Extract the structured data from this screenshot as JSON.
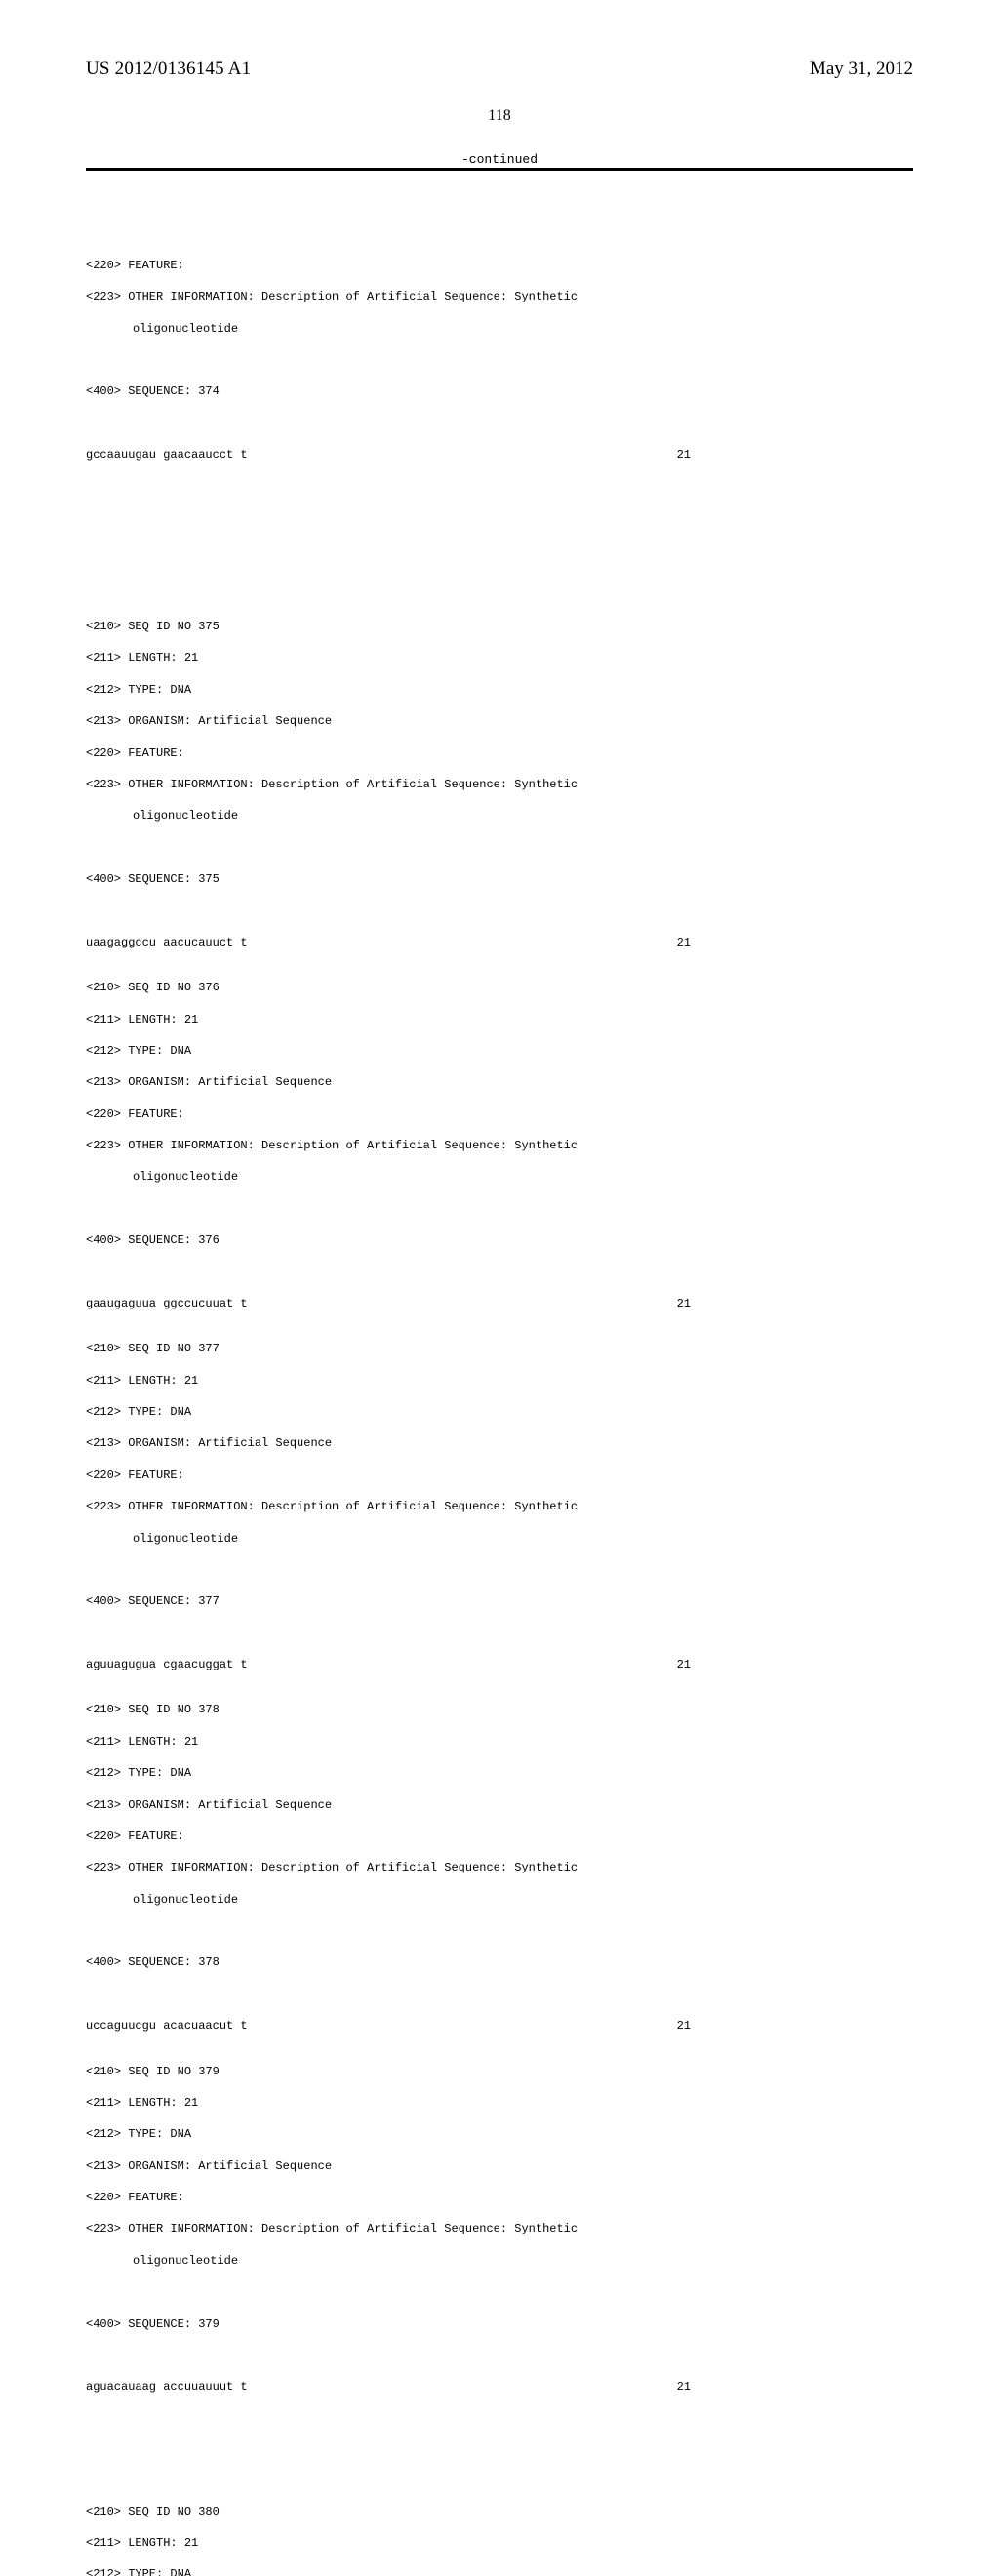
{
  "header": {
    "publication_number": "US 2012/0136145 A1",
    "publication_date": "May 31, 2012"
  },
  "page_number": "118",
  "continued_label": "-continued",
  "first_block": {
    "feature": "<220> FEATURE:",
    "other_info": "<223> OTHER INFORMATION: Description of Artificial Sequence: Synthetic",
    "other_info_cont": "oligonucleotide",
    "seq_header": "<400> SEQUENCE: 374",
    "seq_text": "gccaauugau gaacaaucct t",
    "seq_len": "21"
  },
  "blocks": [
    {
      "seq_id": "<210> SEQ ID NO 375",
      "length": "<211> LENGTH: 21",
      "type": "<212> TYPE: DNA",
      "organism": "<213> ORGANISM: Artificial Sequence",
      "feature": "<220> FEATURE:",
      "other_info": "<223> OTHER INFORMATION: Description of Artificial Sequence: Synthetic",
      "other_info_cont": "oligonucleotide",
      "seq_header": "<400> SEQUENCE: 375",
      "seq_text": "uaagaggccu aacucauuct t",
      "seq_len": "21"
    },
    {
      "seq_id": "<210> SEQ ID NO 376",
      "length": "<211> LENGTH: 21",
      "type": "<212> TYPE: DNA",
      "organism": "<213> ORGANISM: Artificial Sequence",
      "feature": "<220> FEATURE:",
      "other_info": "<223> OTHER INFORMATION: Description of Artificial Sequence: Synthetic",
      "other_info_cont": "oligonucleotide",
      "seq_header": "<400> SEQUENCE: 376",
      "seq_text": "gaaugaguua ggccucuuat t",
      "seq_len": "21"
    },
    {
      "seq_id": "<210> SEQ ID NO 377",
      "length": "<211> LENGTH: 21",
      "type": "<212> TYPE: DNA",
      "organism": "<213> ORGANISM: Artificial Sequence",
      "feature": "<220> FEATURE:",
      "other_info": "<223> OTHER INFORMATION: Description of Artificial Sequence: Synthetic",
      "other_info_cont": "oligonucleotide",
      "seq_header": "<400> SEQUENCE: 377",
      "seq_text": "aguuagugua cgaacuggat t",
      "seq_len": "21"
    },
    {
      "seq_id": "<210> SEQ ID NO 378",
      "length": "<211> LENGTH: 21",
      "type": "<212> TYPE: DNA",
      "organism": "<213> ORGANISM: Artificial Sequence",
      "feature": "<220> FEATURE:",
      "other_info": "<223> OTHER INFORMATION: Description of Artificial Sequence: Synthetic",
      "other_info_cont": "oligonucleotide",
      "seq_header": "<400> SEQUENCE: 378",
      "seq_text": "uccaguucgu acacuaacut t",
      "seq_len": "21"
    },
    {
      "seq_id": "<210> SEQ ID NO 379",
      "length": "<211> LENGTH: 21",
      "type": "<212> TYPE: DNA",
      "organism": "<213> ORGANISM: Artificial Sequence",
      "feature": "<220> FEATURE:",
      "other_info": "<223> OTHER INFORMATION: Description of Artificial Sequence: Synthetic",
      "other_info_cont": "oligonucleotide",
      "seq_header": "<400> SEQUENCE: 379",
      "seq_text": "aguacauaag accuuauuut t",
      "seq_len": "21"
    }
  ],
  "last_block": {
    "seq_id": "<210> SEQ ID NO 380",
    "length": "<211> LENGTH: 21",
    "type": "<212> TYPE: DNA"
  }
}
